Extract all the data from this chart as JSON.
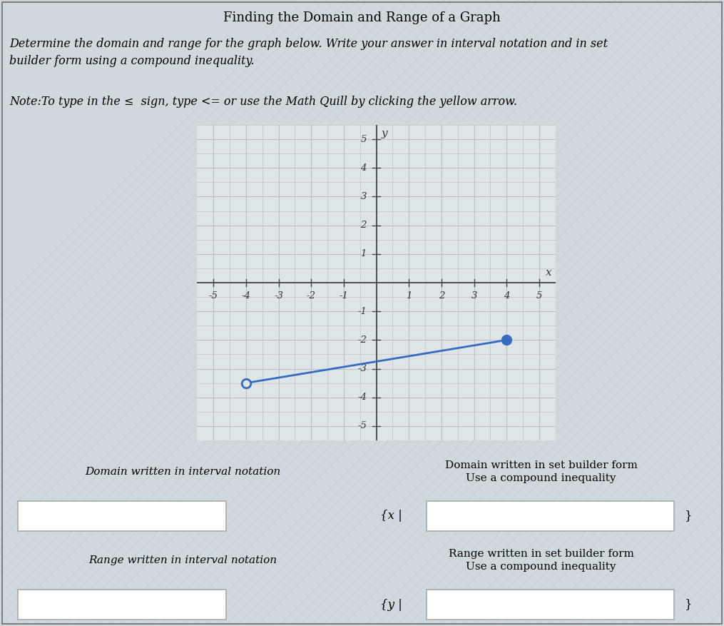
{
  "title": "Finding the Domain and Range of a Graph",
  "description_line1": "Determine the domain and range for the graph below. Write your answer in interval notation and in set",
  "description_line2": "builder form using a compound inequality.",
  "note_line": "Note:To type in the ≤  sign, type <= or use the Math Quill by clicking the yellow arrow.",
  "graph_xlim": [
    -5.5,
    5.5
  ],
  "graph_ylim": [
    -5.5,
    5.5
  ],
  "open_point": [
    -4,
    -3.5
  ],
  "closed_point": [
    4,
    -2
  ],
  "line_color": "#3a6abf",
  "open_circle_color": "#3a6abf",
  "closed_circle_color": "#3a6abf",
  "grid_color": "#bbbbbb",
  "bg_color": "#cfd8dc",
  "graph_panel_bg": "#c8d4d8",
  "graph_bg": "#dde5e8",
  "table_bg": "#cfd4d8",
  "label_domain_interval": "Domain written in interval notation",
  "label_domain_set": "Domain written in set builder form\nUse a compound inequality",
  "label_range_interval": "Range written in interval notation",
  "label_range_set": "Range written in set builder form\nUse a compound inequality",
  "set_x_label": "{x |",
  "set_y_label": "{y |"
}
